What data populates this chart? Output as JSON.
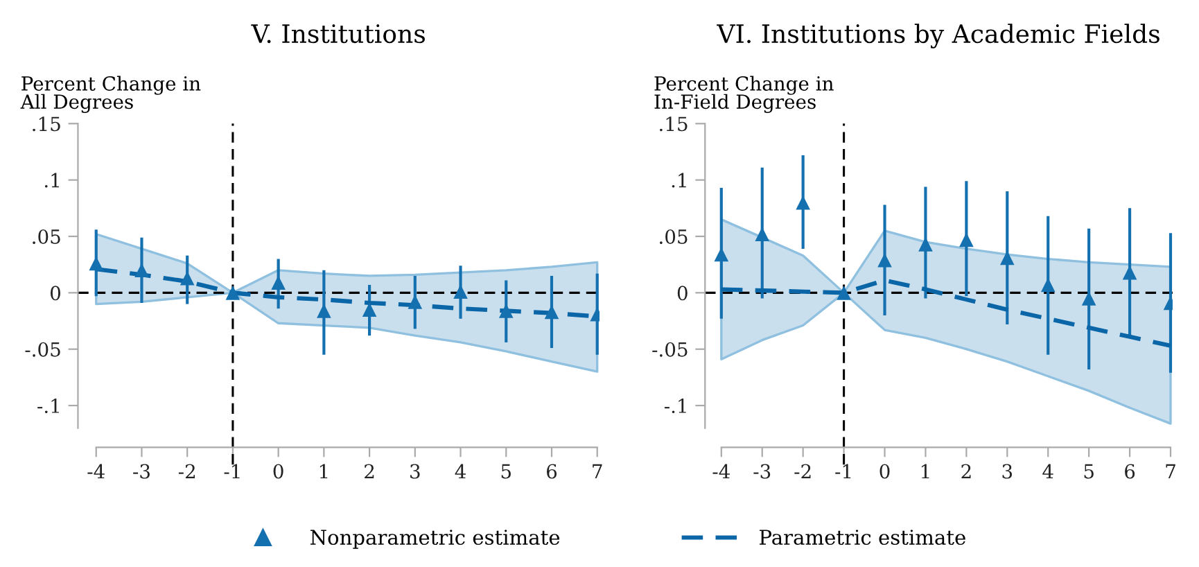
{
  "chart_data": [
    {
      "type": "scatter",
      "title": "V. Institutions",
      "ylabel": "Percent Change in\nAll Degrees",
      "x": [
        -4,
        -3,
        -2,
        -1,
        0,
        1,
        2,
        3,
        4,
        5,
        6,
        7
      ],
      "series": [
        {
          "name": "Nonparametric estimate",
          "color": "#1570b0",
          "marker": "triangle",
          "values": [
            0.026,
            0.02,
            0.013,
            0,
            0.009,
            -0.016,
            -0.015,
            -0.008,
            0.001,
            -0.016,
            -0.017,
            -0.019
          ],
          "errors": [
            [
              -0.003,
              0.056
            ],
            [
              -0.009,
              0.049
            ],
            [
              -0.01,
              0.033
            ],
            null,
            [
              -0.014,
              0.03
            ],
            [
              -0.055,
              0.02
            ],
            [
              -0.038,
              0.007
            ],
            [
              -0.032,
              0.015
            ],
            [
              -0.023,
              0.024
            ],
            [
              -0.044,
              0.011
            ],
            [
              -0.049,
              0.015
            ],
            [
              -0.055,
              0.017
            ]
          ]
        },
        {
          "name": "Parametric estimate",
          "type": "line",
          "color": "#0b66a8",
          "line_style": "dashed",
          "marker": "none",
          "values": [
            0.021,
            0.016,
            0.01,
            0,
            -0.004,
            -0.006,
            -0.009,
            -0.011,
            -0.014,
            -0.016,
            -0.018,
            -0.021
          ],
          "lower": [
            -0.01,
            -0.008,
            -0.004,
            0,
            -0.027,
            -0.029,
            -0.031,
            -0.038,
            -0.044,
            -0.052,
            -0.061,
            -0.07
          ],
          "upper": [
            0.052,
            0.039,
            0.026,
            0,
            0.02,
            0.017,
            0.015,
            0.016,
            0.018,
            0.02,
            0.023,
            0.027
          ]
        }
      ],
      "xlim": [
        -4.4,
        7.05
      ],
      "ylim": [
        -0.12,
        0.15
      ],
      "xticks": [
        -4,
        -3,
        -2,
        -1,
        0,
        1,
        2,
        3,
        4,
        5,
        6,
        7
      ],
      "yticks": [
        {
          "value": -0.1,
          "label": "-.1"
        },
        {
          "value": -0.05,
          "label": "-.05"
        },
        0,
        {
          "value": 0.05,
          "label": ".05"
        },
        {
          "value": 0.1,
          "label": ".1"
        },
        {
          "value": 0.15,
          "label": ".15"
        }
      ],
      "ref_lines": [
        {
          "axis": "y",
          "value": 0,
          "color": "#000000",
          "line_style": "dashed"
        },
        {
          "axis": "x",
          "value": -1,
          "color": "#000000",
          "line_style": "dashed"
        }
      ],
      "grid": false,
      "legend": "bottom"
    },
    {
      "type": "scatter",
      "title": "VI. Institutions by Academic Fields",
      "ylabel": "Percent Change in\nIn-Field Degrees",
      "x": [
        -4,
        -3,
        -2,
        -1,
        0,
        1,
        2,
        3,
        4,
        5,
        6,
        7
      ],
      "series": [
        {
          "name": "Nonparametric estimate",
          "color": "#1570b0",
          "marker": "triangle",
          "values": [
            0.034,
            0.052,
            0.08,
            0,
            0.029,
            0.043,
            0.047,
            0.031,
            0.007,
            -0.005,
            0.018,
            -0.009
          ],
          "errors": [
            [
              -0.023,
              0.093
            ],
            [
              -0.005,
              0.111
            ],
            [
              0.039,
              0.122
            ],
            null,
            [
              -0.02,
              0.078
            ],
            [
              -0.005,
              0.094
            ],
            [
              -0.003,
              0.099
            ],
            [
              -0.028,
              0.09
            ],
            [
              -0.055,
              0.068
            ],
            [
              -0.068,
              0.057
            ],
            [
              -0.039,
              0.075
            ],
            [
              -0.071,
              0.053
            ]
          ]
        },
        {
          "name": "Parametric estimate",
          "type": "line",
          "color": "#0b66a8",
          "line_style": "dashed",
          "marker": "none",
          "values": [
            0.003,
            0.002,
            0.001,
            0,
            0.011,
            0.003,
            -0.006,
            -0.015,
            -0.023,
            -0.031,
            -0.039,
            -0.047
          ],
          "lower": [
            -0.059,
            -0.042,
            -0.029,
            0,
            -0.033,
            -0.04,
            -0.05,
            -0.061,
            -0.074,
            -0.087,
            -0.102,
            -0.116
          ],
          "upper": [
            0.065,
            0.049,
            0.033,
            0,
            0.055,
            0.045,
            0.039,
            0.034,
            0.03,
            0.027,
            0.025,
            0.023
          ]
        }
      ],
      "xlim": [
        -4.4,
        7.05
      ],
      "ylim": [
        -0.12,
        0.15
      ],
      "xticks": [
        -4,
        -3,
        -2,
        -1,
        0,
        1,
        2,
        3,
        4,
        5,
        6,
        7
      ],
      "yticks": [
        {
          "value": -0.1,
          "label": "-.1"
        },
        {
          "value": -0.05,
          "label": "-.05"
        },
        0,
        {
          "value": 0.05,
          "label": ".05"
        },
        {
          "value": 0.1,
          "label": ".1"
        },
        {
          "value": 0.15,
          "label": ".15"
        }
      ],
      "ref_lines": [
        {
          "axis": "y",
          "value": 0,
          "color": "#000000",
          "line_style": "dashed"
        },
        {
          "axis": "x",
          "value": -1,
          "color": "#000000",
          "line_style": "dashed"
        }
      ],
      "grid": false,
      "legend": "bottom"
    }
  ]
}
